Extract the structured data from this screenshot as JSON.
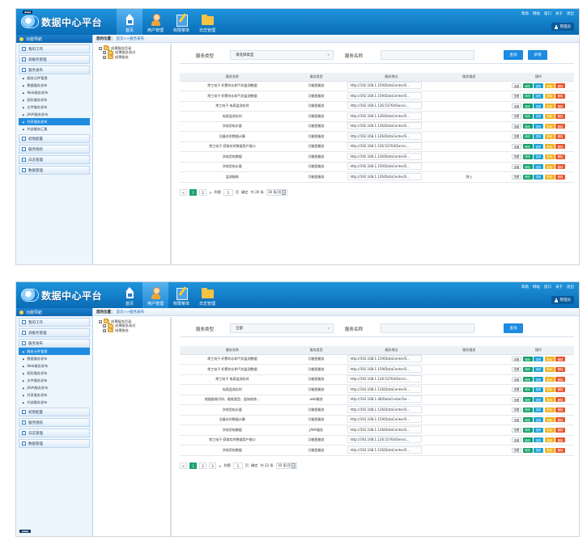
{
  "app": {
    "title": "数据中心平台"
  },
  "nav": [
    "首页",
    "用户管理",
    "权限菜单",
    "日志管理"
  ],
  "toplinks": [
    "帮助",
    "网站",
    "窗口",
    "关于",
    "退出"
  ],
  "admin_label": "管理员",
  "sidebar_header": "功能导航",
  "breadcrumb": {
    "label": "您的位置：",
    "path": "首页>>服务发布"
  },
  "shot1": {
    "sidebar": {
      "groups_top": [
        "我的工作",
        "调服务管理",
        "服务发布"
      ],
      "subs": [
        "服务元件管理",
        "数据服务发布",
        "Web服务发布",
        "图形服务发布",
        "文件服务发布",
        "JAVA服务发布",
        "共享服务发布",
        "外部服务汇集"
      ],
      "active_sub_index": 6,
      "groups_bottom": [
        "权限配置",
        "服务授权",
        "日志管理",
        "数据管理"
      ]
    },
    "tree": {
      "root": "成果服务目录",
      "children": [
        "成果服务测试",
        "成果服务"
      ]
    },
    "filter": {
      "type_label": "服务类型",
      "type_value": "请选择类型",
      "name_label": "服务名称",
      "search_label": "查询",
      "add_label": "新增"
    },
    "table": {
      "headers": [
        "服务名称",
        "服务类型",
        "服务地址",
        "服务描述",
        "操作"
      ],
      "rows": [
        [
          "常工电子-积累的水和气的监测数据",
          "功能图服务",
          "http://192.168.1.159/DataCenter/S...",
          ""
        ],
        [
          "常工电子-积累的水和气的监测数据",
          "功能图服务",
          "http://192.168.1.159/DataCenter/S...",
          ""
        ],
        [
          "常工电子-电表监测实时",
          "功能图服务",
          "http://192.168.1.126:53764/Servic...",
          ""
        ],
        [
          "电表监测实时",
          "功能图服务",
          "http://192.168.1.126/DataCenter/S...",
          ""
        ],
        [
          "学校用电水量",
          "功能图服务",
          "http://192.168.1.126/DataCenter/S...",
          ""
        ],
        [
          "设备实时数据计算",
          "功能图服务",
          "http://192.168.1.126/DataCenter/S...",
          ""
        ],
        [
          "常工电子-获取实时数据用户接口",
          "功能图服务",
          "http://192.168.1.126:53764/Servic...",
          ""
        ],
        [
          "学校用电数据",
          "功能图服务",
          "http://192.168.1.126/DataCenter/S...",
          ""
        ],
        [
          "学校用电水量",
          "功能图服务",
          "http://192.168.1.159/DataCenter/S...",
          ""
        ],
        [
          "监测能耗",
          "功能图服务",
          "http://192.168.1.126/DataCenter/S...",
          "测上"
        ]
      ],
      "ops": [
        "查看",
        "修改",
        "发布",
        "停用",
        "删除"
      ]
    },
    "pager": {
      "pages": [
        "1",
        "2"
      ],
      "current": "1",
      "next": ">",
      "goto": "到第",
      "page_value": "1",
      "page_unit": "页",
      "confirm": "确定",
      "total": "共 20 条",
      "per_page": "10 条/页"
    }
  },
  "shot2": {
    "sidebar": {
      "groups_top": [
        "我的工作",
        "调服务管理",
        "服务发布"
      ],
      "subs": [
        "服务元件管理",
        "数据服务发布",
        "Web服务发布",
        "图形服务发布",
        "文件服务发布",
        "JAVA服务发布",
        "共享服务发布",
        "外部服务发布"
      ],
      "active_sub_index": 0,
      "groups_bottom": [
        "权限配置",
        "服务授权",
        "日志管理",
        "数据管理"
      ]
    },
    "tree": {
      "root": "成果服务目录",
      "children": [
        "成果服务测试",
        "成果服务"
      ]
    },
    "filter": {
      "type_label": "服务类型",
      "type_value": "全部",
      "name_label": "服务名称",
      "search_label": "查询"
    },
    "table": {
      "headers": [
        "服务名称",
        "服务类型",
        "服务地址",
        "服务描述",
        "操作"
      ],
      "rows": [
        [
          "常工电子-积累的水和气的监测数据",
          "功能图服务",
          "http://192.168.1.159/DataCenter/S...",
          ""
        ],
        [
          "常工电子-积累的水和气的监测数据",
          "功能图服务",
          "http://192.168.1.159/DataCenter/S...",
          ""
        ],
        [
          "常工电子-电表监测实时",
          "功能图服务",
          "http://192.168.1.126:53764/Servic...",
          ""
        ],
        [
          "电表监测实时",
          "功能图服务",
          "http://192.168.1.126/DataCenter/S...",
          ""
        ],
        [
          "根据能耗代码、能耗类型、起始结束...",
          "web服务",
          "http://192.168.1.48/DataCenter/Se...",
          ""
        ],
        [
          "学校用电水量",
          "功能图服务",
          "http://192.168.1.126/DataCenter/S...",
          ""
        ],
        [
          "设备实时数据计算",
          "功能图服务",
          "http://192.168.1.159/DataCenter/S...",
          ""
        ],
        [
          "学校用电数据",
          "JAVA服务",
          "http://192.168.1.126/DataCenter/S...",
          ""
        ],
        [
          "常工电子-获取实时数据用户接口",
          "功能图服务",
          "http://192.168.1.126:53764/Servic...",
          ""
        ],
        [
          "学校用电数据",
          "功能图服务",
          "http://192.168.1.126/DataCenter/S...",
          ""
        ]
      ],
      "ops": [
        "查看",
        "修改",
        "发布",
        "停用",
        "删除"
      ]
    },
    "pager": {
      "pages": [
        "1",
        "2",
        "3"
      ],
      "current": "1",
      "next": ">",
      "goto": "到第",
      "page_value": "1",
      "page_unit": "页",
      "confirm": "确定",
      "total": "共 22 条",
      "per_page": "10 条/页"
    }
  }
}
